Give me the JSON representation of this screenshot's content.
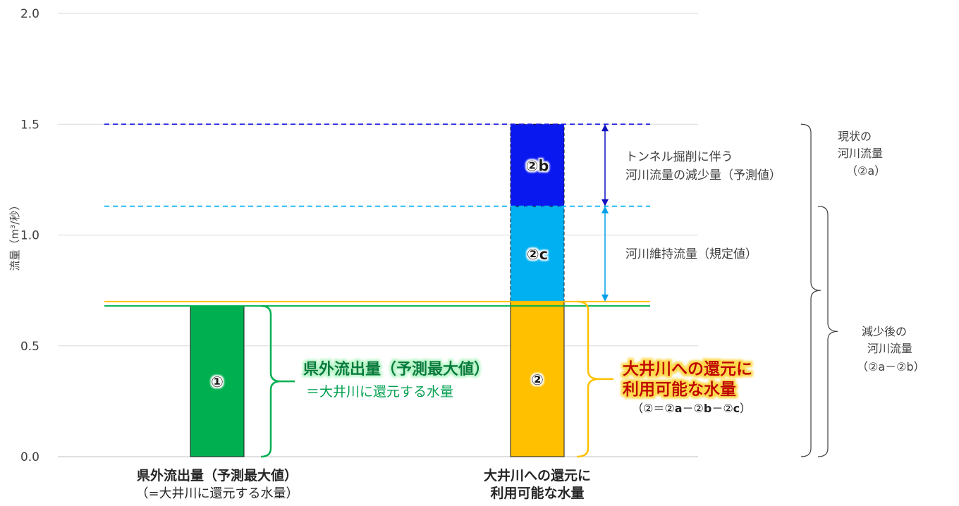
{
  "chart_data": {
    "type": "bar",
    "ylabel": "流量（m³/秒）",
    "ylim": [
      0,
      2.0
    ],
    "yticks": [
      "0.0",
      "0.5",
      "1.0",
      "1.5",
      "2.0"
    ],
    "grid": true,
    "categories": [
      {
        "line1": "県外流出量（予測最大値）",
        "line2": "（=大井川に還元する水量）"
      },
      {
        "line1": "大井川への還元に",
        "line2": "利用可能な水量"
      }
    ],
    "bars": [
      {
        "category": 0,
        "label": "①",
        "from": 0,
        "to": 0.68,
        "color": "#00b050"
      },
      {
        "category": 1,
        "label": "②",
        "from": 0,
        "to": 0.7,
        "color": "#ffc000"
      },
      {
        "category": 1,
        "label": "②c",
        "from": 0.7,
        "to": 1.13,
        "color": "#00b0f0"
      },
      {
        "category": 1,
        "label": "②b",
        "from": 1.13,
        "to": 1.5,
        "color": "#0a18f0"
      }
    ],
    "reference_lines": [
      {
        "name": "green",
        "y": 0.68,
        "color": "#00b050",
        "style": "solid"
      },
      {
        "name": "yellow",
        "y": 0.7,
        "color": "#ffc000",
        "style": "solid"
      },
      {
        "name": "lightblue",
        "y": 1.13,
        "color": "#00b0f0",
        "style": "dashed"
      },
      {
        "name": "blue",
        "y": 1.5,
        "color": "#2020e0",
        "style": "dashed"
      }
    ],
    "annotations": {
      "tunnel_reduction": {
        "line1": "トンネル掘削に伴う",
        "line2": "河川流量の減少量（予測値）",
        "from": 1.13,
        "to": 1.5
      },
      "maintenance_flow": {
        "text": "河川維持流量（規定値）",
        "from": 0.7,
        "to": 1.13
      },
      "outflow": {
        "title": "県外流出量（予測最大値）",
        "subtitle": "＝大井川に還元する水量",
        "from": 0,
        "to": 0.68
      },
      "available": {
        "line1": "大井川への還元に",
        "line2": "利用可能な水量",
        "formula_a": "（②＝②",
        "formula_b": "a",
        "formula_c": "－②",
        "formula_d": "b",
        "formula_e": "－②",
        "formula_f": "c",
        "formula_g": "）",
        "from": 0,
        "to": 0.7
      },
      "current_flow": {
        "line1": "現状の",
        "line2": "河川流量",
        "line3": "（②a）",
        "from": 0,
        "to": 1.5
      },
      "reduced_flow": {
        "line1": "減少後の",
        "line2": "河川流量",
        "line3": "（②a－②b）",
        "from": 0,
        "to": 1.13
      }
    }
  }
}
